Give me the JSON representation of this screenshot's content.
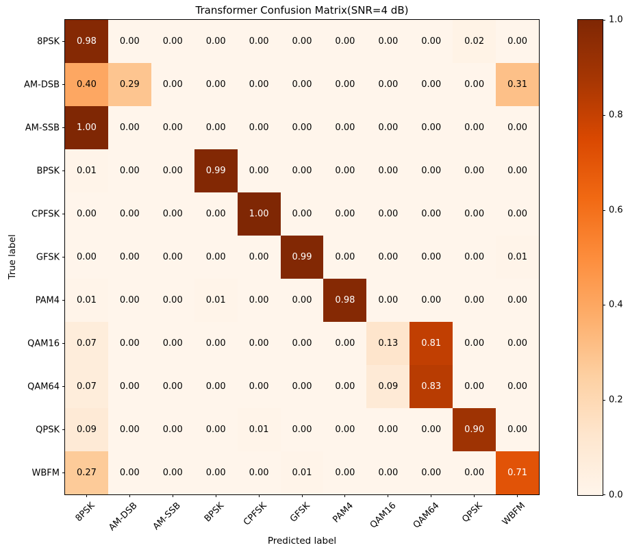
{
  "chart_data": {
    "type": "heatmap",
    "title": "Transformer Confusion Matrix(SNR=4 dB)",
    "xlabel": "Predicted label",
    "ylabel": "True label",
    "x_categories": [
      "8PSK",
      "AM-DSB",
      "AM-SSB",
      "BPSK",
      "CPFSK",
      "GFSK",
      "PAM4",
      "QAM16",
      "QAM64",
      "QPSK",
      "WBFM"
    ],
    "y_categories": [
      "8PSK",
      "AM-DSB",
      "AM-SSB",
      "BPSK",
      "CPFSK",
      "GFSK",
      "PAM4",
      "QAM16",
      "QAM64",
      "QPSK",
      "WBFM"
    ],
    "matrix": [
      [
        0.98,
        0.0,
        0.0,
        0.0,
        0.0,
        0.0,
        0.0,
        0.0,
        0.0,
        0.02,
        0.0
      ],
      [
        0.4,
        0.29,
        0.0,
        0.0,
        0.0,
        0.0,
        0.0,
        0.0,
        0.0,
        0.0,
        0.31
      ],
      [
        1.0,
        0.0,
        0.0,
        0.0,
        0.0,
        0.0,
        0.0,
        0.0,
        0.0,
        0.0,
        0.0
      ],
      [
        0.01,
        0.0,
        0.0,
        0.99,
        0.0,
        0.0,
        0.0,
        0.0,
        0.0,
        0.0,
        0.0
      ],
      [
        0.0,
        0.0,
        0.0,
        0.0,
        1.0,
        0.0,
        0.0,
        0.0,
        0.0,
        0.0,
        0.0
      ],
      [
        0.0,
        0.0,
        0.0,
        0.0,
        0.0,
        0.99,
        0.0,
        0.0,
        0.0,
        0.0,
        0.01
      ],
      [
        0.01,
        0.0,
        0.0,
        0.01,
        0.0,
        0.0,
        0.98,
        0.0,
        0.0,
        0.0,
        0.0
      ],
      [
        0.07,
        0.0,
        0.0,
        0.0,
        0.0,
        0.0,
        0.0,
        0.13,
        0.81,
        0.0,
        0.0
      ],
      [
        0.07,
        0.0,
        0.0,
        0.0,
        0.0,
        0.0,
        0.0,
        0.09,
        0.83,
        0.0,
        0.0
      ],
      [
        0.09,
        0.0,
        0.0,
        0.0,
        0.01,
        0.0,
        0.0,
        0.0,
        0.0,
        0.9,
        0.0
      ],
      [
        0.27,
        0.0,
        0.0,
        0.0,
        0.0,
        0.01,
        0.0,
        0.0,
        0.0,
        0.0,
        0.71
      ]
    ],
    "vmin": 0.0,
    "vmax": 1.0,
    "value_decimals": 2,
    "xtick_rotation_deg": 45,
    "grid": false,
    "colormap": {
      "name": "Oranges",
      "stops": [
        "#fff5eb",
        "#fee6ce",
        "#fdd0a2",
        "#fdae6b",
        "#fd8d3c",
        "#f16913",
        "#d94801",
        "#a63603",
        "#7f2704"
      ]
    },
    "text_colors": {
      "light_cell": "#000000",
      "dark_cell": "#ffffff",
      "threshold": 0.5
    },
    "colorbar": {
      "position": "right",
      "tick_labels": [
        "0.0",
        "0.2",
        "0.4",
        "0.6",
        "0.8",
        "1.0"
      ],
      "tick_values": [
        0.0,
        0.2,
        0.4,
        0.6,
        0.8,
        1.0
      ]
    }
  }
}
